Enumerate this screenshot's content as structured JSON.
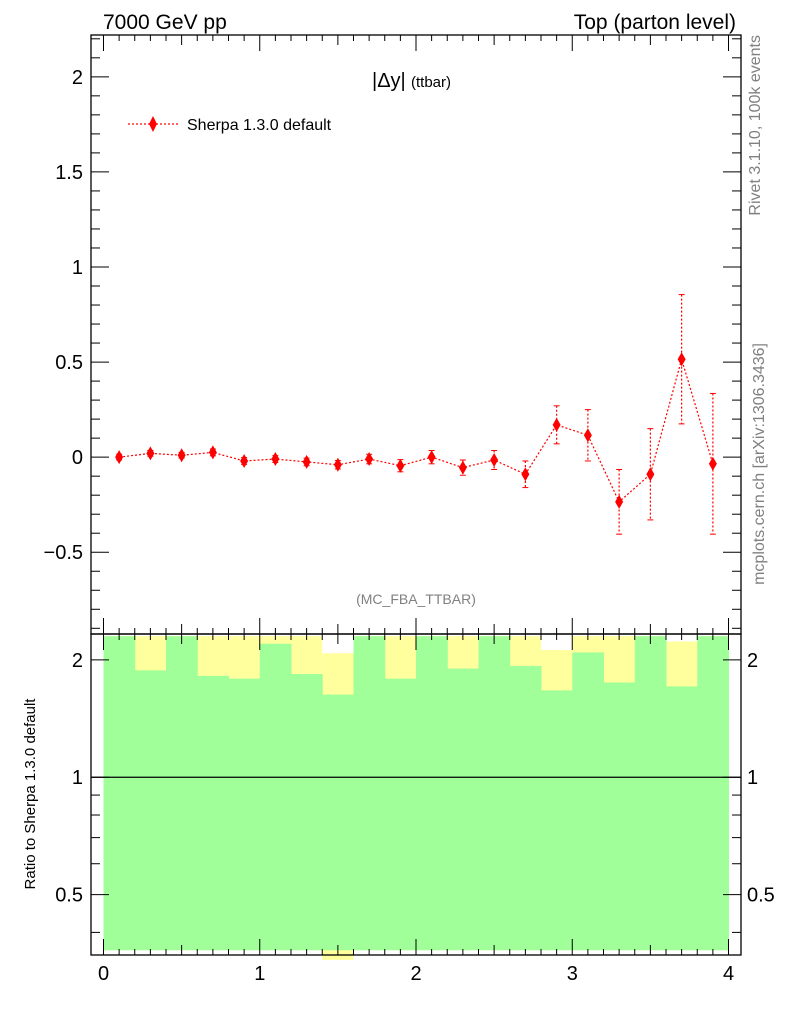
{
  "header": {
    "left": "7000 GeV pp",
    "right": "Top (parton level)"
  },
  "side_labels": {
    "rivet": "Rivet 3.1.10,  100k events",
    "mcplots": "mcplots.cern.ch [arXiv:1306.3436]"
  },
  "plot_label": {
    "main": "|Δy|",
    "suffix": "(ttbar)"
  },
  "analysis_id": "(MC_FBA_TTBAR)",
  "legend": {
    "label": "Sherpa 1.3.0 default",
    "placement": "top-left"
  },
  "colors": {
    "series": "#ff0000",
    "band_inner": "#a0ff98",
    "band_outer": "#ffff9e",
    "axis": "#000000",
    "side_text": "#808080"
  },
  "ratio_ylabel": "Ratio to Sherpa 1.3.0 default",
  "chart_data": [
    {
      "type": "scatter",
      "series": [
        {
          "name": "Sherpa 1.3.0 default",
          "style": "dotted line with diamond markers",
          "x": [
            0.1,
            0.3,
            0.5,
            0.7,
            0.9,
            1.1,
            1.3,
            1.5,
            1.7,
            1.9,
            2.1,
            2.3,
            2.5,
            2.7,
            2.9,
            3.1,
            3.3,
            3.5,
            3.7,
            3.9
          ],
          "y": [
            0.0,
            0.02,
            0.01,
            0.025,
            -0.02,
            -0.01,
            -0.025,
            -0.04,
            -0.01,
            -0.045,
            0.0,
            -0.055,
            -0.015,
            -0.09,
            0.17,
            0.115,
            -0.235,
            -0.09,
            0.515,
            -0.035
          ],
          "yerr": [
            0.015,
            0.015,
            0.015,
            0.018,
            0.018,
            0.018,
            0.02,
            0.022,
            0.025,
            0.032,
            0.035,
            0.04,
            0.05,
            0.07,
            0.1,
            0.135,
            0.17,
            0.24,
            0.34,
            0.37
          ]
        }
      ],
      "xlim": [
        -0.08,
        4.08
      ],
      "ylim": [
        -0.93,
        2.22
      ],
      "yticks": [
        -0.5,
        0,
        0.5,
        1,
        1.5,
        2
      ],
      "ytick_labels": [
        "−0.5",
        "0",
        "0.5",
        "1",
        "1.5",
        "2"
      ],
      "grid": false
    },
    {
      "type": "area",
      "ylabel": "Ratio to Sherpa 1.3.0 default",
      "scale": "log",
      "x_edges": [
        0,
        0.2,
        0.4,
        0.6,
        0.8,
        1.0,
        1.2,
        1.4,
        1.6,
        1.8,
        2.0,
        2.2,
        2.4,
        2.6,
        2.8,
        3.0,
        3.2,
        3.4,
        3.6,
        3.8,
        4.0
      ],
      "band_inner_upper": [
        2.3,
        1.88,
        2.3,
        1.82,
        1.79,
        2.2,
        1.84,
        1.63,
        2.3,
        1.79,
        2.3,
        1.9,
        2.3,
        1.93,
        1.67,
        2.09,
        1.75,
        2.3,
        1.71,
        2.3
      ],
      "band_inner_lower": [
        0.36,
        0.36,
        0.36,
        0.36,
        0.36,
        0.36,
        0.36,
        0.36,
        0.36,
        0.36,
        0.36,
        0.36,
        0.36,
        0.36,
        0.36,
        0.36,
        0.36,
        0.36,
        0.36,
        0.36
      ],
      "band_outer_upper": [
        2.3,
        2.3,
        2.3,
        2.3,
        2.3,
        2.3,
        2.3,
        2.08,
        2.3,
        2.3,
        2.3,
        2.3,
        2.3,
        2.3,
        2.12,
        2.3,
        2.3,
        2.3,
        2.23,
        2.3
      ],
      "band_outer_lower": [
        0.36,
        0.36,
        0.36,
        0.36,
        0.36,
        0.36,
        0.36,
        0.34,
        0.36,
        0.36,
        0.36,
        0.36,
        0.36,
        0.36,
        0.36,
        0.36,
        0.36,
        0.36,
        0.36,
        0.36
      ],
      "reference_line": 1,
      "xlim": [
        -0.08,
        4.08
      ],
      "ylim": [
        0.35,
        2.33
      ],
      "yticks": [
        0.5,
        1,
        2
      ],
      "ytick_labels": [
        "0.5",
        "1",
        "2"
      ],
      "xticks": [
        0,
        1,
        2,
        3,
        4
      ],
      "xtick_labels": [
        "0",
        "1",
        "2",
        "3",
        "4"
      ]
    }
  ]
}
